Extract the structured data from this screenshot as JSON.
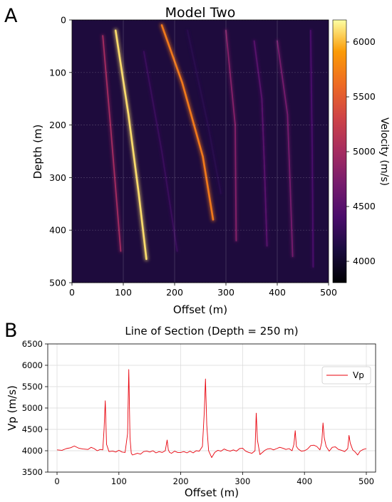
{
  "panel_a": {
    "label": "A",
    "colorbar_ticks": [
      "4000",
      "4500",
      "5000",
      "5500",
      "6000"
    ]
  },
  "panel_b": {
    "label": "B"
  },
  "chart_data": [
    {
      "type": "heatmap",
      "title": "Model Two",
      "xlabel": "Offset (m)",
      "ylabel": "Depth (m)",
      "xlim": [
        0,
        500
      ],
      "ylim": [
        500,
        0
      ],
      "xticks": [
        0,
        100,
        200,
        300,
        400,
        500
      ],
      "yticks": [
        0,
        100,
        200,
        300,
        400,
        500
      ],
      "grid": true,
      "colormap": "inferno",
      "background_color": "#1e0b3d",
      "colorbar": {
        "label": "Velocity (m/s)",
        "range": [
          3800,
          6200
        ],
        "ticks": [
          4000,
          4500,
          5000,
          5500,
          6000
        ]
      },
      "features": [
        {
          "name": "reflector",
          "points": [
            [
              60,
              30
            ],
            [
              75,
              200
            ],
            [
              95,
              440
            ]
          ],
          "velocity": 5000
        },
        {
          "name": "reflector",
          "points": [
            [
              85,
              20
            ],
            [
              110,
              180
            ],
            [
              130,
              330
            ],
            [
              145,
              455
            ]
          ],
          "velocity": 6100
        },
        {
          "name": "reflector",
          "points": [
            [
              140,
              60
            ],
            [
              175,
              250
            ],
            [
              205,
              440
            ]
          ],
          "velocity": 4300
        },
        {
          "name": "reflector",
          "points": [
            [
              175,
              10
            ],
            [
              215,
              120
            ],
            [
              255,
              260
            ],
            [
              275,
              380
            ]
          ],
          "velocity": 5700
        },
        {
          "name": "reflector",
          "points": [
            [
              225,
              20
            ],
            [
              265,
              200
            ],
            [
              290,
              330
            ]
          ],
          "velocity": 4200
        },
        {
          "name": "reflector",
          "points": [
            [
              300,
              20
            ],
            [
              318,
              200
            ],
            [
              320,
              420
            ]
          ],
          "velocity": 4800
        },
        {
          "name": "reflector",
          "points": [
            [
              355,
              40
            ],
            [
              370,
              150
            ],
            [
              375,
              280
            ],
            [
              380,
              430
            ]
          ],
          "velocity": 4500
        },
        {
          "name": "reflector",
          "points": [
            [
              400,
              40
            ],
            [
              420,
              180
            ],
            [
              425,
              310
            ],
            [
              430,
              450
            ]
          ],
          "velocity": 4700
        },
        {
          "name": "reflector",
          "points": [
            [
              465,
              20
            ],
            [
              468,
              240
            ],
            [
              470,
              470
            ]
          ],
          "velocity": 4400
        }
      ]
    },
    {
      "type": "line",
      "title": "Line of Section (Depth = 250 m)",
      "xlabel": "Offset (m)",
      "ylabel": "Vp (m/s)",
      "xlim": [
        -15,
        515
      ],
      "ylim": [
        3500,
        6500
      ],
      "xticks": [
        0,
        100,
        200,
        300,
        400,
        500
      ],
      "yticks": [
        3500,
        4000,
        4500,
        5000,
        5500,
        6000,
        6500
      ],
      "grid": true,
      "legend": "top-right",
      "series": [
        {
          "name": "Vp",
          "color": "#e8000b",
          "x": [
            0,
            8,
            15,
            22,
            28,
            35,
            42,
            50,
            55,
            60,
            65,
            70,
            74,
            76,
            78,
            80,
            84,
            90,
            95,
            100,
            105,
            110,
            114,
            116,
            118,
            120,
            122,
            126,
            130,
            135,
            140,
            145,
            150,
            155,
            160,
            165,
            170,
            175,
            178,
            180,
            182,
            185,
            190,
            195,
            200,
            205,
            210,
            215,
            220,
            225,
            230,
            235,
            238,
            240,
            242,
            245,
            250,
            255,
            260,
            265,
            270,
            275,
            280,
            285,
            290,
            295,
            300,
            305,
            310,
            315,
            320,
            322,
            324,
            328,
            332,
            336,
            340,
            345,
            350,
            355,
            360,
            365,
            370,
            375,
            380,
            383,
            385,
            387,
            390,
            395,
            400,
            405,
            410,
            415,
            420,
            425,
            428,
            430,
            432,
            435,
            440,
            445,
            450,
            455,
            460,
            465,
            470,
            472,
            474,
            478,
            482,
            486,
            490,
            495,
            500
          ],
          "y": [
            4020,
            4010,
            4050,
            4070,
            4110,
            4060,
            4040,
            4030,
            4080,
            4050,
            4000,
            4030,
            4020,
            4500,
            5170,
            4150,
            3980,
            3990,
            3970,
            4010,
            3970,
            3960,
            4400,
            5900,
            4300,
            3940,
            3900,
            3920,
            3940,
            3920,
            3980,
            3990,
            3970,
            4000,
            3950,
            3980,
            3960,
            4000,
            4250,
            4020,
            3960,
            3940,
            3990,
            3960,
            3960,
            3980,
            3950,
            3990,
            3950,
            4000,
            3990,
            4100,
            4900,
            5680,
            4600,
            4000,
            3840,
            3960,
            4010,
            3990,
            4040,
            4010,
            3990,
            4020,
            3990,
            4050,
            4060,
            3990,
            3960,
            3940,
            4000,
            4880,
            4250,
            3910,
            3960,
            4010,
            4040,
            4050,
            4020,
            4050,
            4080,
            4060,
            4030,
            4050,
            4000,
            4150,
            4470,
            4100,
            4040,
            3990,
            4000,
            4040,
            4120,
            4130,
            4100,
            4020,
            4200,
            4650,
            4300,
            4100,
            3990,
            4080,
            4090,
            4030,
            4010,
            3980,
            4050,
            4360,
            4180,
            4020,
            3970,
            3900,
            3990,
            4030,
            4050
          ]
        }
      ]
    }
  ]
}
